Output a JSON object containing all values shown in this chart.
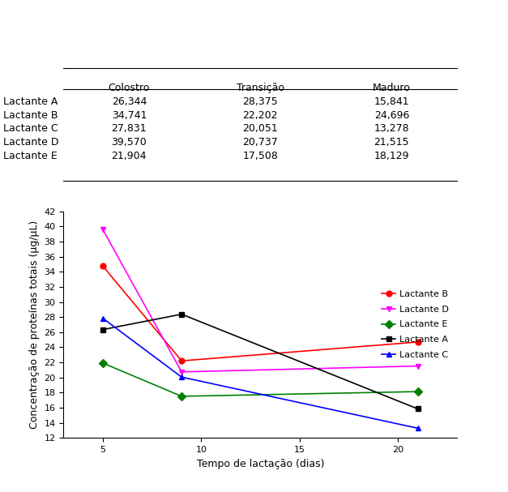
{
  "table": {
    "col_headers": [
      "Colostro",
      "Transição",
      "Maduro"
    ],
    "rows": [
      {
        "label": "Lactante A",
        "values": [
          26.344,
          28.375,
          15.841
        ]
      },
      {
        "label": "Lactante B",
        "values": [
          34.741,
          22.202,
          24.696
        ]
      },
      {
        "label": "Lactante C",
        "values": [
          27.831,
          20.051,
          13.278
        ]
      },
      {
        "label": "Lactante D",
        "values": [
          39.57,
          20.737,
          21.515
        ]
      },
      {
        "label": "Lactante E",
        "values": [
          21.904,
          17.508,
          18.129
        ]
      }
    ]
  },
  "chart": {
    "x_values": [
      5,
      9,
      21
    ],
    "series": [
      {
        "label": "Lactante B",
        "color": "red",
        "marker": "o",
        "data": [
          34.741,
          22.202,
          24.696
        ]
      },
      {
        "label": "Lactante D",
        "color": "magenta",
        "marker": "v",
        "data": [
          39.57,
          20.737,
          21.515
        ]
      },
      {
        "label": "Lactante E",
        "color": "green",
        "marker": "D",
        "data": [
          21.904,
          17.508,
          18.129
        ]
      },
      {
        "label": "Lactante A",
        "color": "black",
        "marker": "s",
        "data": [
          26.344,
          28.375,
          15.841
        ]
      },
      {
        "label": "Lactante C",
        "color": "blue",
        "marker": "^",
        "data": [
          27.831,
          20.051,
          13.278
        ]
      }
    ],
    "xlabel": "Tempo de lactação (dias)",
    "ylabel": "Concentração de proteínas totais (µg/µL)",
    "xlim": [
      3,
      23
    ],
    "ylim": [
      12,
      42
    ],
    "yticks": [
      12,
      14,
      16,
      18,
      20,
      22,
      24,
      26,
      28,
      30,
      32,
      34,
      36,
      38,
      40,
      42
    ],
    "xticks": [
      5,
      10,
      15,
      20
    ]
  },
  "background_color": "#ffffff"
}
